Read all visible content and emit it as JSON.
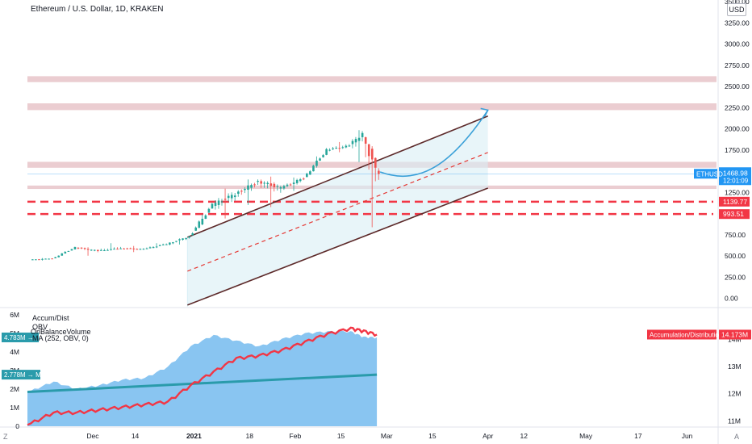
{
  "header": {
    "title": "Ethereum / U.S. Dollar, 1D, KRAKEN",
    "currency": "USD"
  },
  "chart_data": [
    {
      "type": "candlestick",
      "title": "Ethereum / U.S. Dollar, 1D, KRAKEN",
      "symbol": "ETHUSD",
      "last_price": "1468.98",
      "countdown": "12:01:09",
      "y_ticks": [
        "3500.00",
        "3250.00",
        "3000.00",
        "2750.00",
        "2500.00",
        "2250.00",
        "2000.00",
        "1750.00",
        "1250.00",
        "750.00",
        "500.00",
        "250.00",
        "0.00"
      ],
      "ylim": [
        -100,
        3500
      ],
      "x_ticks": [
        "Dec",
        "14",
        "2021",
        "18",
        "Feb",
        "15",
        "Mar",
        "15",
        "Apr",
        "12",
        "May",
        "17",
        "Jun"
      ],
      "x_tick_dates": [
        "2020-12-01",
        "2020-12-14",
        "2021-01-01",
        "2021-01-18",
        "2021-02-01",
        "2021-02-15",
        "2021-03-01",
        "2021-03-15",
        "2021-04-01",
        "2021-04-12",
        "2021-05-01",
        "2021-05-17",
        "2021-06-01"
      ],
      "xlim": [
        "2020-11-11",
        "2021-06-10"
      ],
      "ohlc_weekly": [
        {
          "date": "2020-11-12",
          "o": 455,
          "h": 480,
          "l": 440,
          "c": 470
        },
        {
          "date": "2020-11-19",
          "o": 470,
          "h": 610,
          "l": 470,
          "c": 600
        },
        {
          "date": "2020-11-26",
          "o": 600,
          "h": 620,
          "l": 490,
          "c": 560
        },
        {
          "date": "2020-12-03",
          "o": 560,
          "h": 660,
          "l": 550,
          "c": 590
        },
        {
          "date": "2020-12-10",
          "o": 590,
          "h": 620,
          "l": 540,
          "c": 580
        },
        {
          "date": "2020-12-17",
          "o": 580,
          "h": 680,
          "l": 570,
          "c": 640
        },
        {
          "date": "2020-12-24",
          "o": 640,
          "h": 740,
          "l": 590,
          "c": 730
        },
        {
          "date": "2020-12-31",
          "o": 730,
          "h": 1150,
          "l": 720,
          "c": 1100
        },
        {
          "date": "2021-01-07",
          "o": 1100,
          "h": 1350,
          "l": 880,
          "c": 1230
        },
        {
          "date": "2021-01-14",
          "o": 1230,
          "h": 1450,
          "l": 1050,
          "c": 1380
        },
        {
          "date": "2021-01-21",
          "o": 1380,
          "h": 1460,
          "l": 1050,
          "c": 1300
        },
        {
          "date": "2021-01-28",
          "o": 1300,
          "h": 1480,
          "l": 1220,
          "c": 1420
        },
        {
          "date": "2021-02-04",
          "o": 1420,
          "h": 1800,
          "l": 1400,
          "c": 1750
        },
        {
          "date": "2021-02-11",
          "o": 1750,
          "h": 1870,
          "l": 1700,
          "c": 1800
        },
        {
          "date": "2021-02-18",
          "o": 1800,
          "h": 2040,
          "l": 1550,
          "c": 1950
        },
        {
          "date": "2021-02-22",
          "o": 1950,
          "h": 1980,
          "l": 700,
          "c": 1500
        },
        {
          "date": "2021-02-26",
          "o": 1500,
          "h": 1530,
          "l": 1400,
          "c": 1469
        }
      ],
      "price_labels": [
        {
          "text": "1139.77",
          "value": 1139.77,
          "color": "#f23645"
        },
        {
          "text": "993.51",
          "value": 993.51,
          "color": "#f23645"
        }
      ],
      "resistance_zones": [
        {
          "low": 2550,
          "high": 2620,
          "color": "#e8c4c9"
        },
        {
          "low": 2220,
          "high": 2300,
          "color": "#e8c4c9"
        },
        {
          "low": 1540,
          "high": 1610,
          "color": "#e8c4c9"
        },
        {
          "low": 1290,
          "high": 1330,
          "color": "#e8c4c9"
        }
      ],
      "channel": {
        "start_date": "2020-12-30",
        "end_date": "2021-04-01",
        "upper": [
          720,
          2150
        ],
        "middle": [
          320,
          1720
        ],
        "lower": [
          -80,
          1300
        ]
      },
      "projection": {
        "color": "#3aa0d8",
        "points": [
          {
            "date": "2021-02-27",
            "value": 1490
          },
          {
            "date": "2021-03-10",
            "value": 1430
          },
          {
            "date": "2021-03-20",
            "value": 1620
          },
          {
            "date": "2021-04-01",
            "value": 2220
          }
        ]
      },
      "colors": {
        "up": "#26a69a",
        "down": "#ef5350",
        "channel": "#5d2a2a",
        "middle": "#e53935",
        "support": "#f23645",
        "last_price_bg": "#2196f3"
      },
      "grid": false,
      "x_axis_shared_with_indicator": true
    },
    {
      "type": "area",
      "indicators": [
        "Accum/Dist",
        "OBV",
        "OnBalanceVolume",
        "MA (252, OBV, 0)"
      ],
      "labels": {
        "obv_value": "4.783M",
        "ma_value": "2.778M",
        "ma_name": "MA",
        "ad_name": "Accumulation/Distribution",
        "ad_value": "14.173M"
      },
      "left_y_ticks": [
        "6M",
        "5M",
        "4M",
        "3M",
        "2M",
        "1M",
        "0"
      ],
      "left_ylim": [
        0,
        6
      ],
      "right_y_ticks": [
        "14M",
        "13M",
        "12M",
        "11M"
      ],
      "right_ylim": [
        10.8,
        14.9
      ],
      "dates": [
        "2020-11-12",
        "2020-11-19",
        "2020-11-26",
        "2020-12-03",
        "2020-12-10",
        "2020-12-17",
        "2020-12-24",
        "2020-12-31",
        "2021-01-07",
        "2021-01-14",
        "2021-01-21",
        "2021-01-28",
        "2021-02-04",
        "2021-02-11",
        "2021-02-18",
        "2021-02-22",
        "2021-02-26"
      ],
      "series": [
        {
          "name": "OBV",
          "unit": "M",
          "values": [
            1.9,
            2.4,
            2.0,
            2.2,
            2.5,
            2.6,
            3.2,
            4.3,
            4.9,
            4.6,
            4.3,
            4.7,
            5.0,
            5.1,
            5.1,
            4.8,
            4.78
          ],
          "color": "#7cbff0"
        },
        {
          "name": "MA",
          "unit": "M",
          "values": [
            1.85,
            1.92,
            1.99,
            2.04,
            2.1,
            2.16,
            2.22,
            2.3,
            2.37,
            2.43,
            2.49,
            2.54,
            2.6,
            2.66,
            2.71,
            2.74,
            2.778
          ],
          "color": "#2a9bab"
        },
        {
          "name": "Accumulation/Distribution",
          "unit": "M",
          "axis": "right",
          "values": [
            10.9,
            11.3,
            11.3,
            11.4,
            11.5,
            11.6,
            11.7,
            12.3,
            12.8,
            13.3,
            13.4,
            13.6,
            13.9,
            14.2,
            14.4,
            14.3,
            14.173
          ],
          "color": "#f23645"
        }
      ]
    }
  ],
  "footer": {
    "left_icon": "Z",
    "right_icon": "A"
  }
}
